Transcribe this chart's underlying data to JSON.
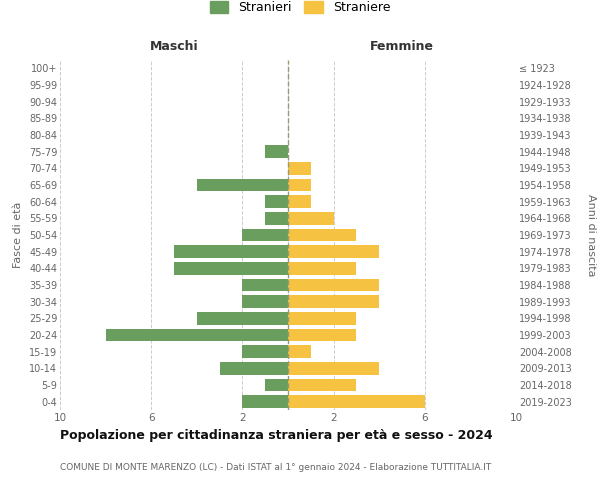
{
  "age_groups": [
    "100+",
    "95-99",
    "90-94",
    "85-89",
    "80-84",
    "75-79",
    "70-74",
    "65-69",
    "60-64",
    "55-59",
    "50-54",
    "45-49",
    "40-44",
    "35-39",
    "30-34",
    "25-29",
    "20-24",
    "15-19",
    "10-14",
    "5-9",
    "0-4"
  ],
  "birth_years": [
    "≤ 1923",
    "1924-1928",
    "1929-1933",
    "1934-1938",
    "1939-1943",
    "1944-1948",
    "1949-1953",
    "1954-1958",
    "1959-1963",
    "1964-1968",
    "1969-1973",
    "1974-1978",
    "1979-1983",
    "1984-1988",
    "1989-1993",
    "1994-1998",
    "1999-2003",
    "2004-2008",
    "2009-2013",
    "2014-2018",
    "2019-2023"
  ],
  "males": [
    0,
    0,
    0,
    0,
    0,
    1,
    0,
    4,
    1,
    1,
    2,
    5,
    5,
    2,
    2,
    4,
    8,
    2,
    3,
    1,
    2
  ],
  "females": [
    0,
    0,
    0,
    0,
    0,
    0,
    1,
    1,
    1,
    2,
    3,
    4,
    3,
    4,
    4,
    3,
    3,
    1,
    4,
    3,
    6
  ],
  "male_color": "#6a9e5e",
  "female_color": "#f5c242",
  "xlim": 10,
  "title": "Popolazione per cittadinanza straniera per età e sesso - 2024",
  "subtitle": "COMUNE DI MONTE MARENZO (LC) - Dati ISTAT al 1° gennaio 2024 - Elaborazione TUTTITALIA.IT",
  "ylabel_left": "Fasce di età",
  "ylabel_right": "Anni di nascita",
  "header_left": "Maschi",
  "header_right": "Femmine",
  "legend_males": "Stranieri",
  "legend_females": "Straniere",
  "grid_color": "#cccccc",
  "spine_color": "#cccccc",
  "text_color": "#666666",
  "dashed_line_color": "#999977",
  "bar_height": 0.75,
  "xticks": [
    10,
    6,
    2
  ],
  "xtick_labels": [
    "10",
    "6",
    "2"
  ]
}
